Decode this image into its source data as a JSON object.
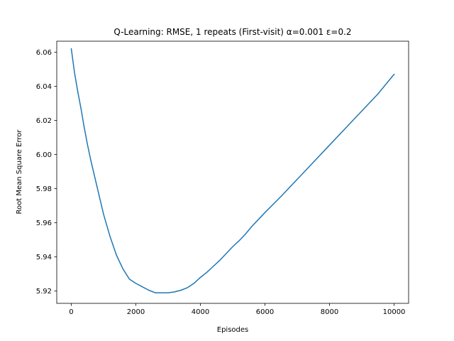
{
  "chart_data": {
    "type": "line",
    "title": "Q-Learning: RMSE, 1 repeats (First-visit) α=0.001 ε=0.2",
    "xlabel": "Episodes",
    "ylabel": "Root Mean Square Error",
    "xlim": [
      -450,
      10450
    ],
    "ylim": [
      5.9128,
      6.0664
    ],
    "xticks": [
      0,
      2000,
      4000,
      6000,
      8000,
      10000
    ],
    "xtick_labels": [
      "0",
      "2000",
      "4000",
      "6000",
      "8000",
      "10000"
    ],
    "yticks": [
      5.92,
      5.94,
      5.96,
      5.98,
      6.0,
      6.02,
      6.04,
      6.06
    ],
    "ytick_labels": [
      "5.92",
      "5.94",
      "5.96",
      "5.98",
      "6.00",
      "6.02",
      "6.04",
      "6.06"
    ],
    "grid": false,
    "legend": null,
    "color": "#1f77b4",
    "series": [
      {
        "x": [
          0,
          100,
          200,
          300,
          400,
          500,
          600,
          700,
          800,
          900,
          1000,
          1200,
          1400,
          1600,
          1800,
          2000,
          2200,
          2400,
          2600,
          2800,
          3000,
          3200,
          3400,
          3600,
          3800,
          4000,
          4200,
          4400,
          4600,
          4800,
          5000,
          5200,
          5400,
          5600,
          5800,
          6000,
          6500,
          7000,
          7500,
          8000,
          8500,
          9000,
          9500,
          10000
        ],
        "y": [
          6.062,
          6.048,
          6.037,
          6.027,
          6.016,
          6.006,
          5.997,
          5.989,
          5.981,
          5.973,
          5.965,
          5.952,
          5.941,
          5.933,
          5.927,
          5.9245,
          5.9225,
          5.9205,
          5.919,
          5.919,
          5.919,
          5.9195,
          5.9205,
          5.922,
          5.9245,
          5.928,
          5.931,
          5.9345,
          5.938,
          5.942,
          5.946,
          5.9495,
          5.9535,
          5.958,
          5.962,
          5.966,
          5.9755,
          5.9855,
          5.9955,
          6.0055,
          6.0155,
          6.0255,
          6.0355,
          6.047
        ]
      }
    ]
  }
}
